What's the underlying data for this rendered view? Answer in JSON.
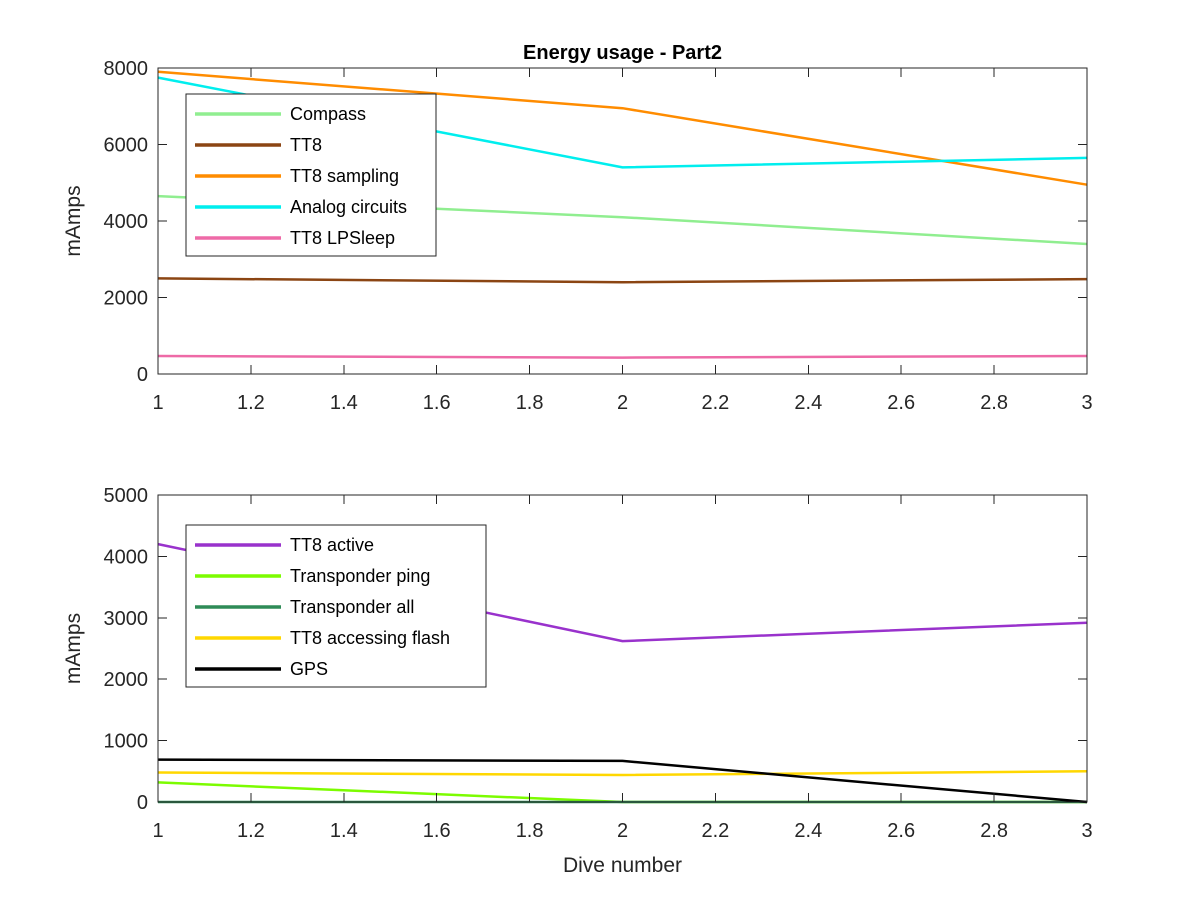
{
  "chart_data": [
    {
      "type": "line",
      "title": "Energy usage - Part2",
      "xlabel": "",
      "ylabel": "mAmps",
      "xlim": [
        1,
        3
      ],
      "ylim": [
        0,
        8000
      ],
      "xticks": [
        "1",
        "1.2",
        "1.4",
        "1.6",
        "1.8",
        "2",
        "2.2",
        "2.4",
        "2.6",
        "2.8",
        "3"
      ],
      "xtick_values": [
        1,
        1.2,
        1.4,
        1.6,
        1.8,
        2,
        2.2,
        2.4,
        2.6,
        2.8,
        3
      ],
      "yticks": [
        "0",
        "2000",
        "4000",
        "6000",
        "8000"
      ],
      "ytick_values": [
        0,
        2000,
        4000,
        6000,
        8000
      ],
      "grid": false,
      "legend_position": "top-left",
      "x": [
        1,
        2,
        3
      ],
      "series": [
        {
          "name": "Compass",
          "color": "#90EE90",
          "values": [
            4650,
            4100,
            3400
          ]
        },
        {
          "name": "TT8",
          "color": "#8B4513",
          "values": [
            2500,
            2400,
            2480
          ]
        },
        {
          "name": "TT8 sampling",
          "color": "#FF8C00",
          "values": [
            7900,
            6950,
            4950
          ]
        },
        {
          "name": "Analog circuits",
          "color": "#00EEEE",
          "values": [
            7750,
            5400,
            5650
          ]
        },
        {
          "name": "TT8 LPSleep",
          "color": "#EE6AA7",
          "values": [
            470,
            430,
            470
          ]
        }
      ]
    },
    {
      "type": "line",
      "title": "",
      "xlabel": "Dive number",
      "ylabel": "mAmps",
      "xlim": [
        1,
        3
      ],
      "ylim": [
        0,
        5000
      ],
      "xticks": [
        "1",
        "1.2",
        "1.4",
        "1.6",
        "1.8",
        "2",
        "2.2",
        "2.4",
        "2.6",
        "2.8",
        "3"
      ],
      "xtick_values": [
        1,
        1.2,
        1.4,
        1.6,
        1.8,
        2,
        2.2,
        2.4,
        2.6,
        2.8,
        3
      ],
      "yticks": [
        "0",
        "1000",
        "2000",
        "3000",
        "4000",
        "5000"
      ],
      "ytick_values": [
        0,
        1000,
        2000,
        3000,
        4000,
        5000
      ],
      "grid": false,
      "legend_position": "top-left",
      "x": [
        1,
        2,
        3
      ],
      "series": [
        {
          "name": "TT8 active",
          "color": "#9932CC",
          "values": [
            4200,
            2620,
            2920
          ]
        },
        {
          "name": "Transponder ping",
          "color": "#7CFC00",
          "values": [
            320,
            0,
            0
          ]
        },
        {
          "name": "Transponder all",
          "color": "#2E8B57",
          "values": [
            0,
            0,
            0
          ]
        },
        {
          "name": "TT8 accessing flash",
          "color": "#FFD700",
          "values": [
            480,
            440,
            500
          ]
        },
        {
          "name": "GPS",
          "color": "#000000",
          "values": [
            690,
            670,
            0
          ]
        }
      ]
    }
  ]
}
